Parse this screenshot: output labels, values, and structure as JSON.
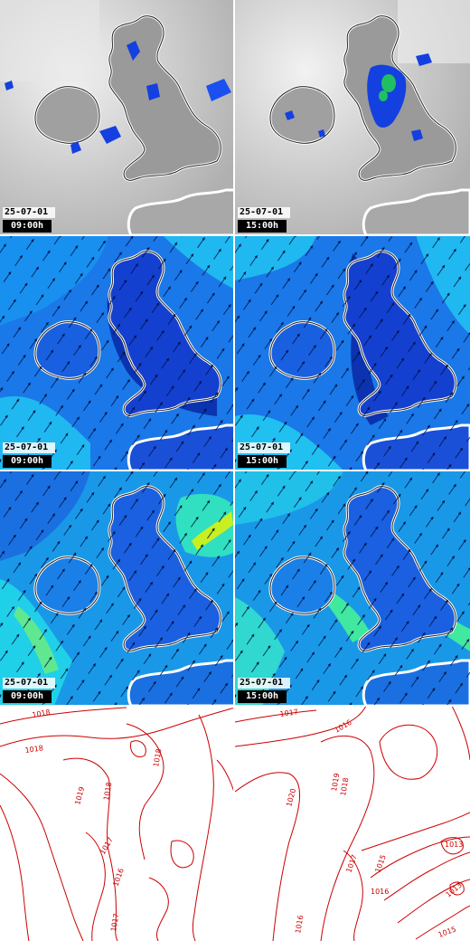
{
  "panels": [
    {
      "id": "precip-09",
      "date": "25-07-01",
      "time": "09:00h"
    },
    {
      "id": "precip-15",
      "date": "25-07-01",
      "time": "15:00h"
    },
    {
      "id": "wind-low-09",
      "date": "25-07-01",
      "time": "09:00h"
    },
    {
      "id": "wind-low-15",
      "date": "25-07-01",
      "time": "15:00h"
    },
    {
      "id": "wind-high-09",
      "date": "25-07-01",
      "time": "09:00h"
    },
    {
      "id": "wind-high-15",
      "date": "25-07-01",
      "time": "15:00h"
    }
  ],
  "pressure": {
    "left_labels": [
      "1018",
      "1018",
      "1018",
      "1019",
      "1018",
      "1017",
      "1016",
      "1017"
    ],
    "right_labels": [
      "1017",
      "1016",
      "1020",
      "1019",
      "1018",
      "1017",
      "1015",
      "1013",
      "1016",
      "1013",
      "1016",
      "1015"
    ]
  },
  "colors": {
    "land_outline": "#ffffff",
    "coast_stroke": "#222222",
    "pressure_line": "#cc0000",
    "wind_dark": "#0a2aa8",
    "wind_mid": "#1a78e8",
    "wind_light": "#20d8e8",
    "wind_yellow": "#d8f020",
    "precip_blue": "#1440e0"
  }
}
